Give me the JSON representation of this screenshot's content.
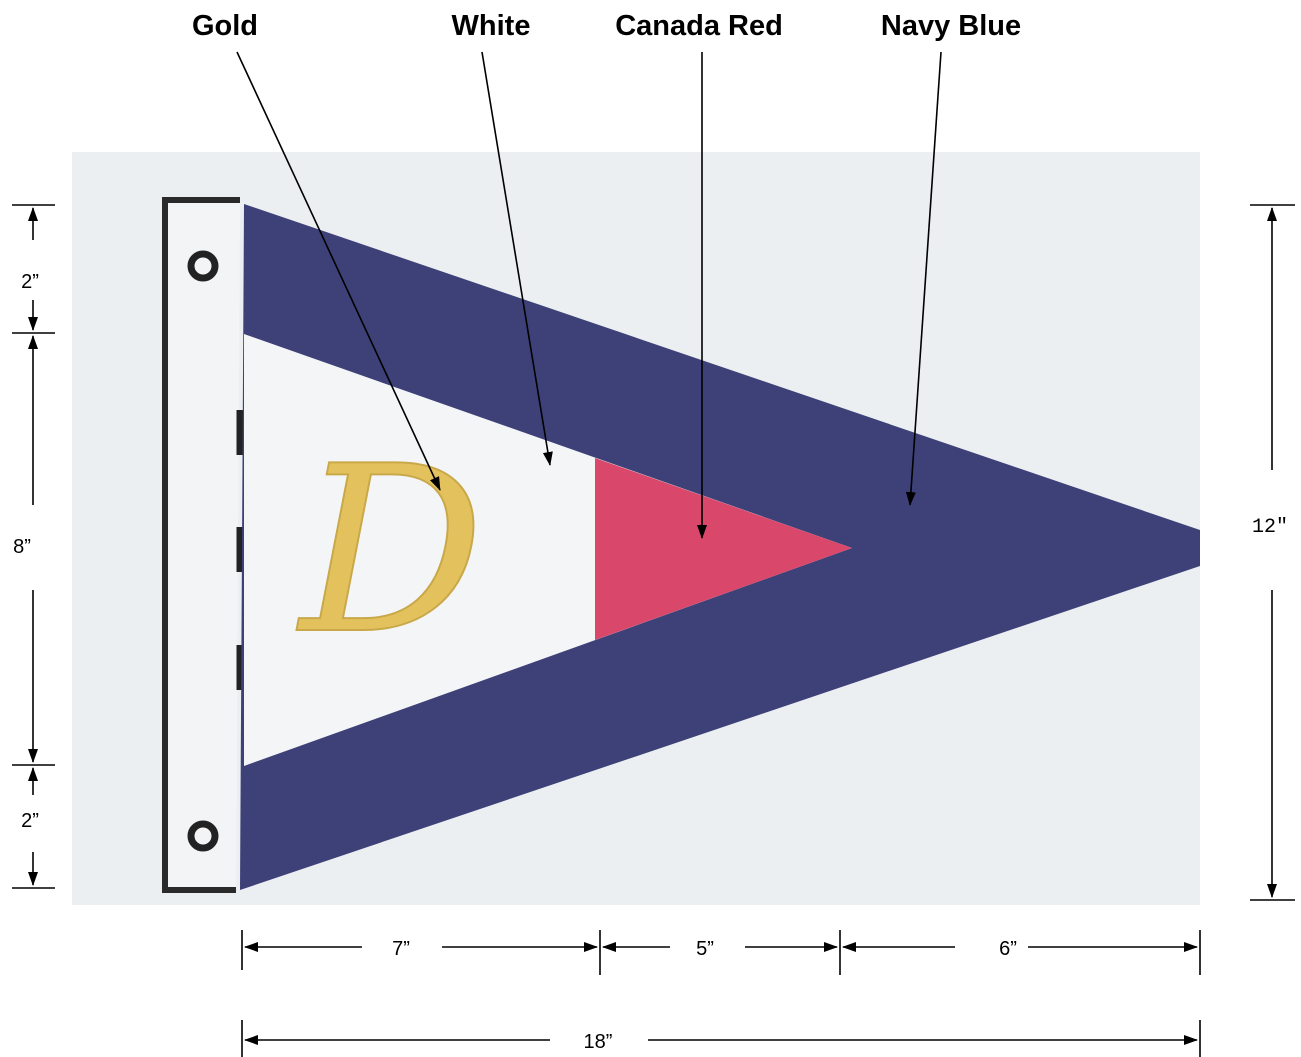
{
  "labels": {
    "gold": "Gold",
    "white": "White",
    "canada_red": "Canada Red",
    "navy_blue": "Navy Blue"
  },
  "letter": "D",
  "dimensions": {
    "left_top": "2”",
    "left_middle": "8”",
    "left_bottom": "2”",
    "right_height": "12″",
    "bottom_hoist": "7”",
    "bottom_red": "5”",
    "bottom_fly": "6”",
    "total_length": "18”"
  },
  "colors": {
    "gold": "#d8b24a",
    "white": "#f4f5f7",
    "canada_red": "#d9476a",
    "navy_blue": "#3e4178",
    "background": "#eceff1"
  }
}
